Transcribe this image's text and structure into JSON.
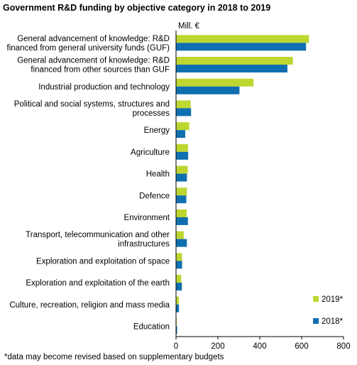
{
  "chart_data": {
    "type": "bar",
    "orientation": "horizontal",
    "title": "Government R&D funding by objective category in 2018 to 2019",
    "unit_label": "Mill. €",
    "categories": [
      [
        "General advancement of knowledge: R&D",
        "financed from general university funds (GUF)"
      ],
      [
        "General advancement of knowledge: R&D",
        "financed from other sources than GUF"
      ],
      [
        "Industrial production and technology"
      ],
      [
        "Political and social systems, structures and",
        "processes"
      ],
      [
        "Energy"
      ],
      [
        "Agriculture"
      ],
      [
        "Health"
      ],
      [
        "Defence"
      ],
      [
        "Environment"
      ],
      [
        "Transport, telecommunication and other",
        "infrastructures"
      ],
      [
        "Exploration and exploitation of space"
      ],
      [
        "Exploration and exploitation of the earth"
      ],
      [
        "Culture, recreation, religion and mass media"
      ],
      [
        "Education"
      ]
    ],
    "series": [
      {
        "name": "2019*",
        "color": "#bed630",
        "values": [
          635,
          558,
          370,
          70,
          63,
          57,
          56,
          52,
          51,
          37,
          29,
          25,
          14,
          3
        ]
      },
      {
        "name": "2018*",
        "color": "#0f6fb0",
        "values": [
          621,
          532,
          303,
          72,
          44,
          58,
          52,
          49,
          57,
          52,
          29,
          28,
          14,
          5
        ]
      }
    ],
    "xlim": [
      0,
      800
    ],
    "xticks": [
      0,
      200,
      400,
      600,
      800
    ],
    "grid": false,
    "legend_position": "bottom-right"
  },
  "footnote": "*data may become revised based on supplementary budgets"
}
